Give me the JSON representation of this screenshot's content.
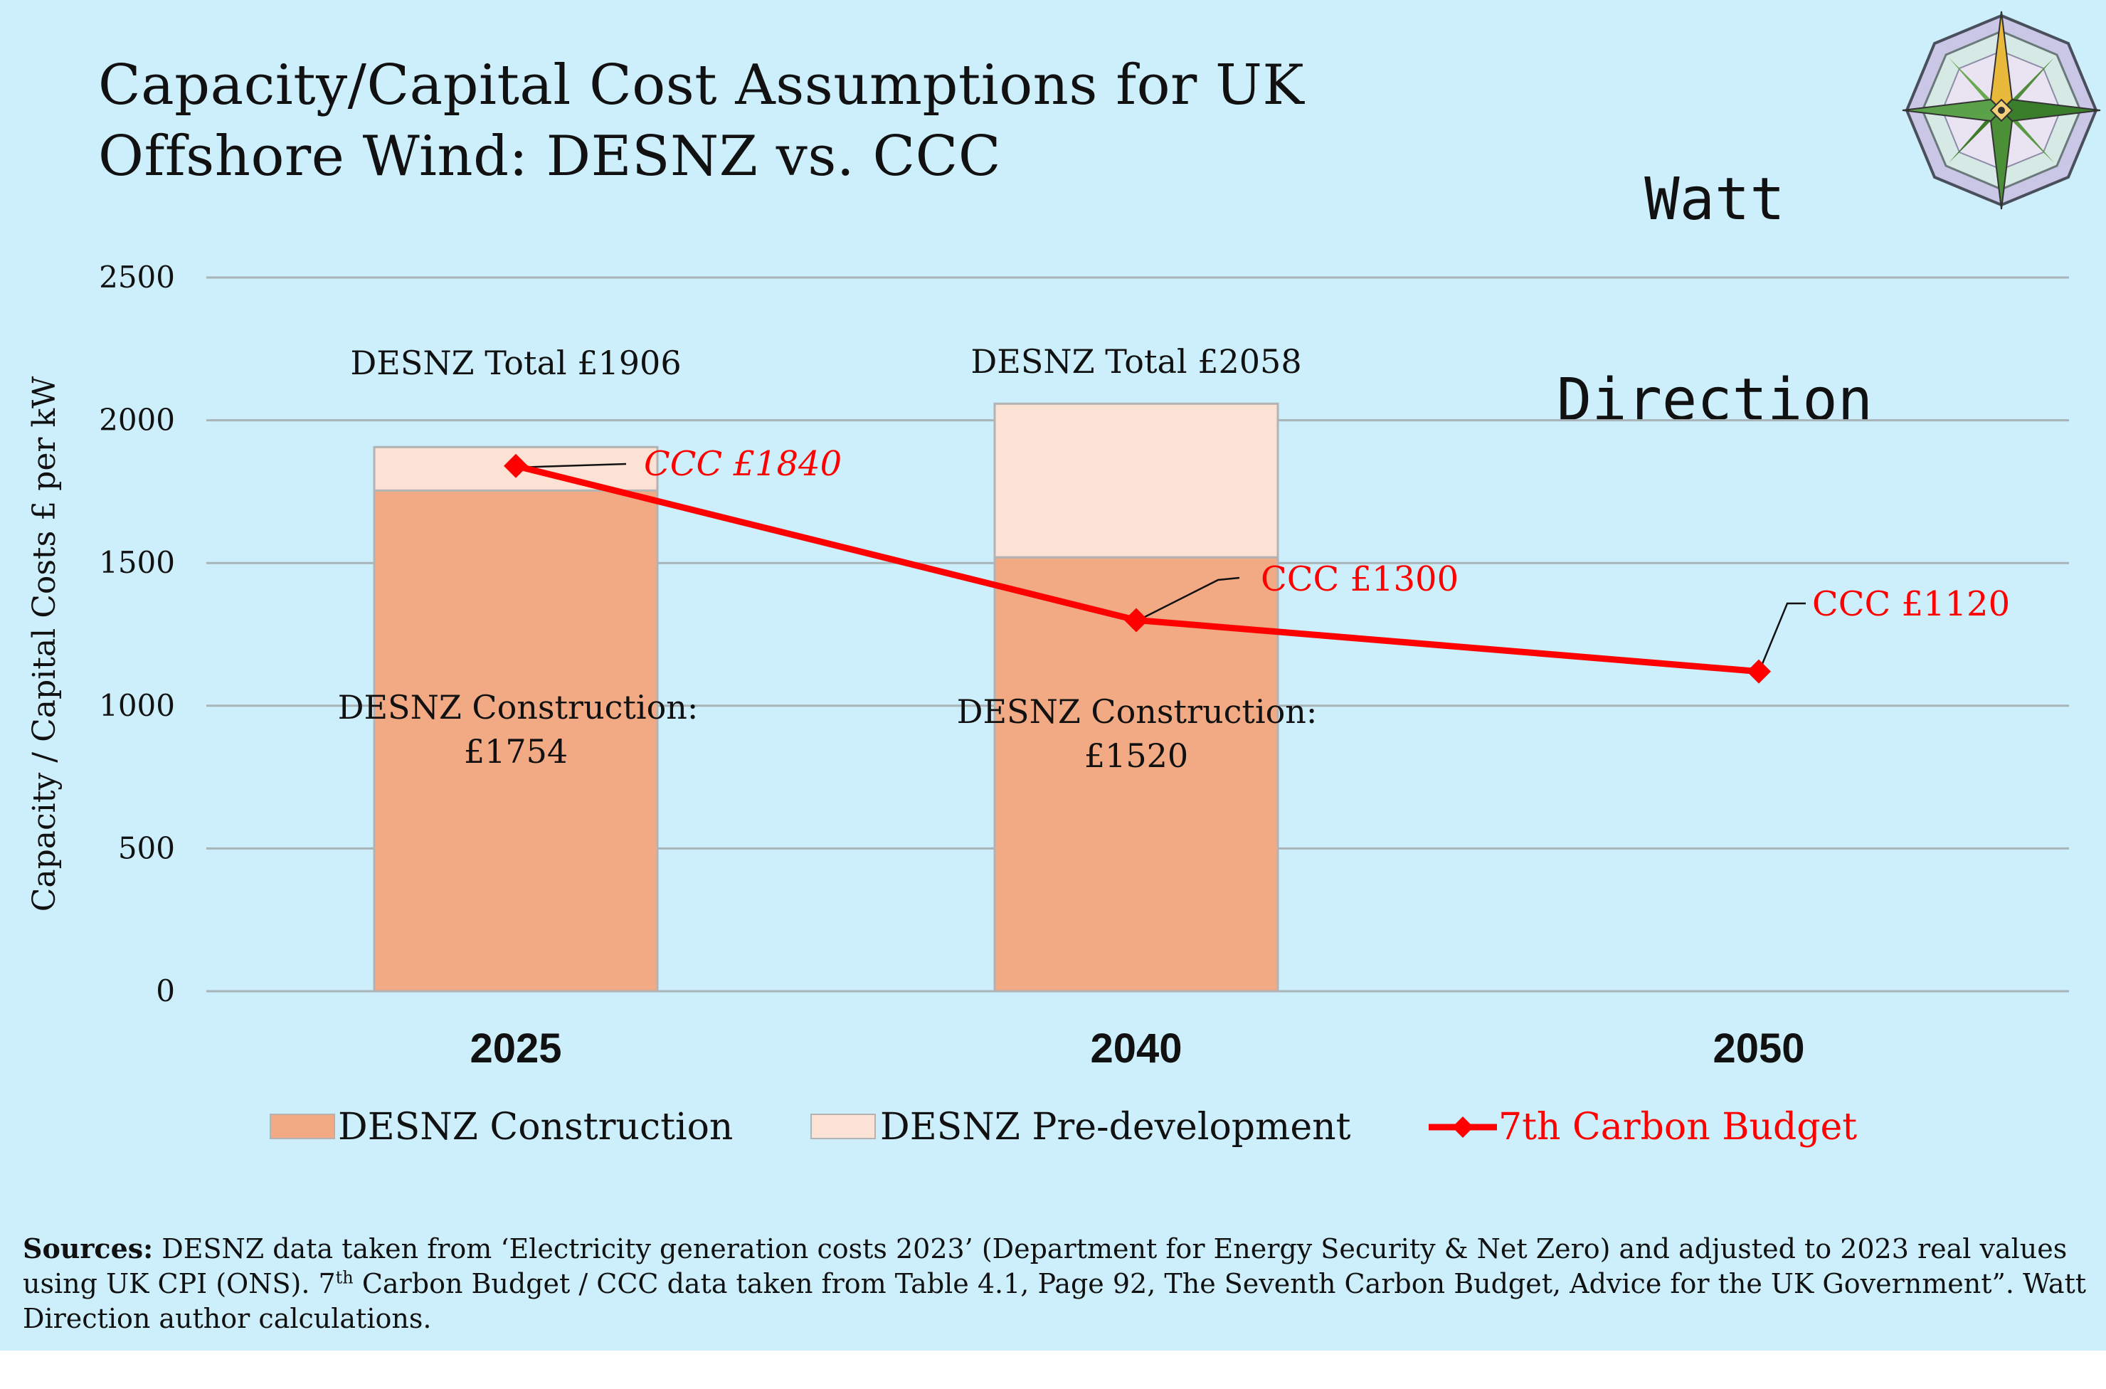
{
  "header": {
    "title_line1": "Capacity/Capital Cost Assumptions for UK",
    "title_line2": "Offshore Wind: DESNZ vs. CCC"
  },
  "brand": {
    "line1": "Watt",
    "line2": "Direction",
    "logo_icon": "compass-rose-icon"
  },
  "colors": {
    "background": "#cdeefb",
    "construction": "#f1aa84",
    "predevelopment": "#fce2d4",
    "carbon_budget": "#ff0000",
    "gridline": "#a9b4b8"
  },
  "chart_data": {
    "type": "bar",
    "stacked": true,
    "categories": [
      "2025",
      "2040",
      "2050"
    ],
    "ylabel": "Capacity / Capital Costs £ per kW",
    "xlabel": "",
    "ylim": [
      0,
      2500
    ],
    "yticks": [
      0,
      500,
      1000,
      1500,
      2000,
      2500
    ],
    "grid": true,
    "legend_position": "bottom",
    "series": [
      {
        "name": "DESNZ Construction",
        "type": "bar",
        "values": [
          1754,
          1520,
          null
        ]
      },
      {
        "name": "DESNZ Pre-development",
        "type": "bar",
        "values": [
          152,
          538,
          null
        ]
      },
      {
        "name": "7th Carbon Budget",
        "type": "line",
        "marker": "diamond",
        "values": [
          1840,
          1300,
          1120
        ]
      }
    ],
    "annotations": {
      "totals": [
        "DESNZ Total £1906",
        "DESNZ Total £2058"
      ],
      "construction_line1": [
        "DESNZ Construction:",
        "DESNZ Construction:"
      ],
      "construction_line2": [
        "£1754",
        "£1520"
      ],
      "ccc_labels": [
        "CCC £1840",
        "CCC £1300",
        "CCC £1120"
      ]
    }
  },
  "sources": {
    "label": "Sources:",
    "text_a": " DESNZ data taken from ‘Electricity generation costs 2023’ (Department for Energy Security & Net Zero) and adjusted to 2023 real values using UK CPI (ONS).  7",
    "sup": "th",
    "text_b": " Carbon Budget / CCC data taken from Table 4.1, Page 92, The Seventh Carbon Budget, Advice for the UK Government”. Watt Direction author calculations."
  }
}
